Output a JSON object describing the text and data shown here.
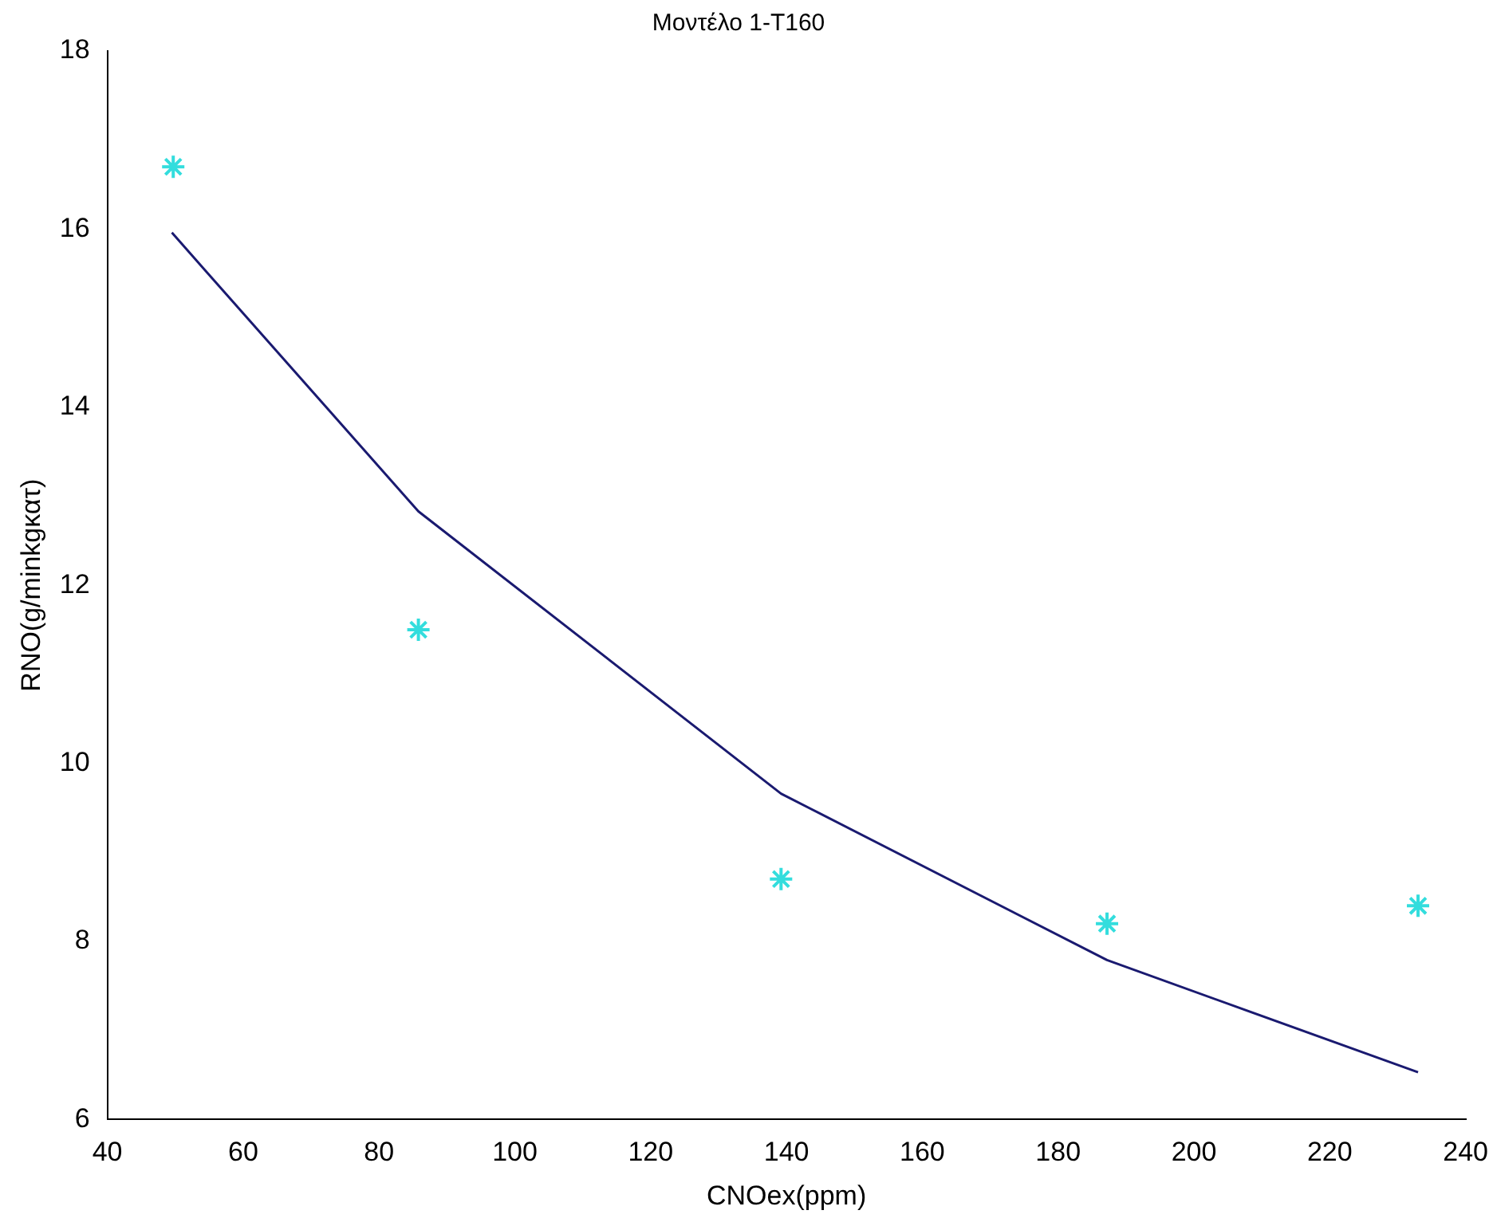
{
  "chart_data": {
    "type": "scatter",
    "title": "Μοντέλο 1-T160",
    "xlabel": "CNOex(ppm)",
    "ylabel": "RNO(g/minkgκατ)",
    "series": [
      {
        "color": "#33dddd",
        "marker": "cross",
        "x": [
          49.7,
          85.8,
          139.2,
          187.2,
          233.0
        ],
        "values": [
          16.7,
          11.5,
          8.7,
          8.2,
          8.4
        ]
      },
      {
        "type": "line",
        "color": "#1a1a70",
        "marker": "none",
        "line_style": "solid",
        "x": [
          49.5,
          85.8,
          139.2,
          187.2,
          233.0
        ],
        "values": [
          15.96,
          12.83,
          9.66,
          7.79,
          6.53
        ]
      }
    ],
    "xlim": [
      40,
      240
    ],
    "xticks": [
      40,
      60,
      80,
      100,
      120,
      140,
      160,
      180,
      200,
      220,
      240
    ],
    "ylim": [
      6,
      18
    ],
    "yticks": [
      6,
      8,
      10,
      12,
      14,
      16,
      18
    ],
    "grid": false,
    "legend": false
  }
}
